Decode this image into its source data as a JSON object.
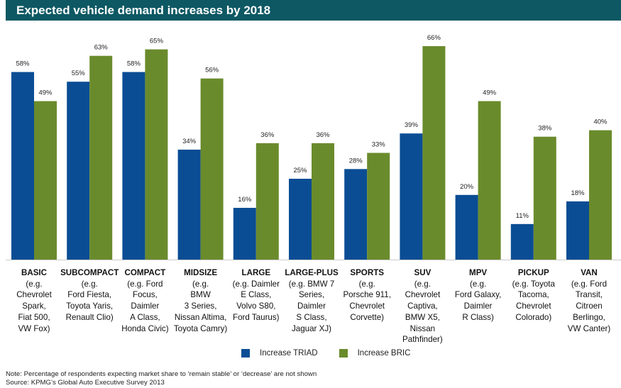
{
  "chart_data": {
    "type": "bar",
    "title": "Expected vehicle demand increases by 2018",
    "categories": [
      "BASIC",
      "SUBCOMPACT",
      "COMPACT",
      "MIDSIZE",
      "LARGE",
      "LARGE-PLUS",
      "SPORTS",
      "SUV",
      "MPV",
      "PICKUP",
      "VAN"
    ],
    "category_examples": [
      [
        "(e.g.",
        "Chevrolet",
        "Spark,",
        "Fiat 500,",
        "VW Fox)"
      ],
      [
        "(e.g.",
        "Ford Fiesta,",
        "Toyota Yaris,",
        "Renault Clio)"
      ],
      [
        "(e.g. Ford",
        "Focus,",
        "Daimler",
        "A Class,",
        "Honda Civic)"
      ],
      [
        "(e.g.",
        "BMW",
        "3 Series,",
        "Nissan Altima,",
        "Toyota Camry)"
      ],
      [
        "(e.g. Daimler",
        "E Class,",
        "Volvo S80,",
        "Ford Taurus)"
      ],
      [
        "(e.g. BMW 7",
        "Series,",
        "Daimler",
        "S Class,",
        "Jaguar XJ)"
      ],
      [
        "(e.g.",
        "Porsche 911,",
        "Chevrolet",
        "Corvette)"
      ],
      [
        "(e.g.",
        "Chevrolet",
        "Captiva,",
        "BMW X5,",
        "Nissan",
        "Pathfinder)"
      ],
      [
        "(e.g.",
        "Ford Galaxy,",
        "Daimler",
        "R Class)"
      ],
      [
        "(e.g. Toyota",
        "Tacoma,",
        "Chevrolet",
        "Colorado)"
      ],
      [
        "(e.g. Ford",
        "Transit,",
        "Citroen",
        "Berlingo,",
        "VW Canter)"
      ]
    ],
    "series": [
      {
        "name": "Increase TRIAD",
        "color": "#0a4d94",
        "values": [
          58,
          55,
          58,
          34,
          16,
          25,
          28,
          39,
          20,
          11,
          18
        ]
      },
      {
        "name": "Increase BRIC",
        "color": "#6a8b2c",
        "values": [
          49,
          63,
          65,
          56,
          36,
          36,
          33,
          66,
          49,
          38,
          40
        ]
      }
    ],
    "value_format": "%",
    "ylim": [
      0,
      70
    ],
    "grid": false,
    "legend": "bottom"
  },
  "footer": {
    "note": "Note: Percentage of respondents expecting market share to ‘remain stable’ or ‘decrease’ are not shown",
    "source": "Source: KPMG’s Global Auto Executive Survey 2013"
  }
}
